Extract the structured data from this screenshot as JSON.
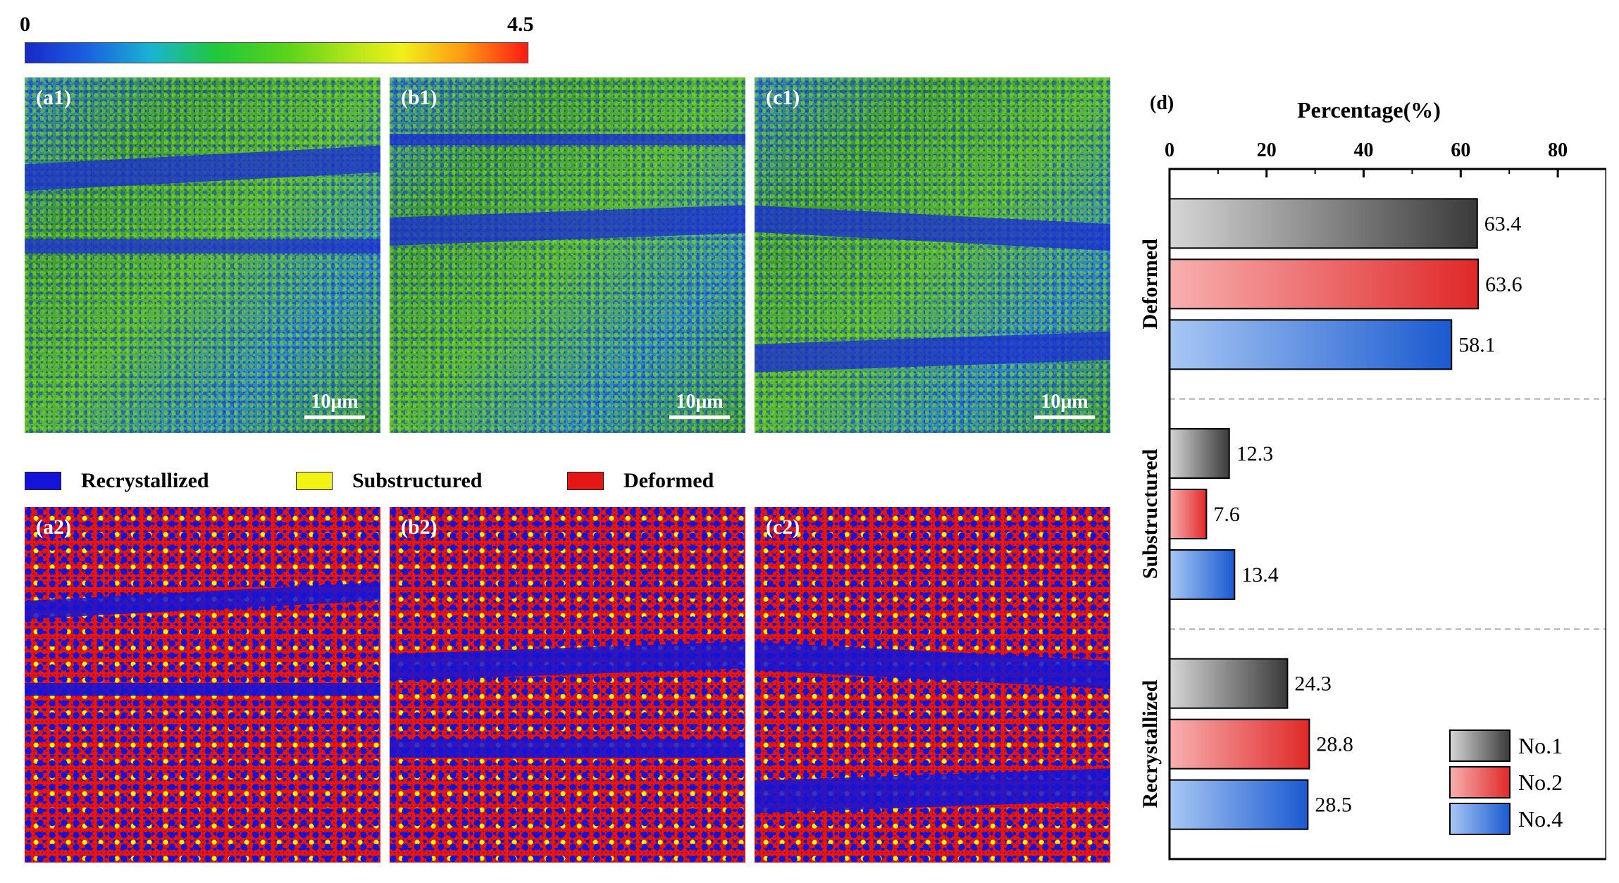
{
  "colorbar": {
    "min_label": "0",
    "max_label": "4.5",
    "colors": [
      "#1a28c8",
      "#19b4d2",
      "#20c83a",
      "#f0f01a",
      "#ff9a12",
      "#ff1a14"
    ]
  },
  "kam_panels": [
    {
      "label": "(a1)",
      "scale": "10μm"
    },
    {
      "label": "(b1)",
      "scale": "10μm"
    },
    {
      "label": "(c1)",
      "scale": "10μm"
    }
  ],
  "gos_panels": [
    {
      "label": "(a2)"
    },
    {
      "label": "(b2)"
    },
    {
      "label": "(c2)"
    }
  ],
  "map_legend": [
    {
      "label": "Recrystallized",
      "color": "#1414d8"
    },
    {
      "label": "Substructured",
      "color": "#f2f214"
    },
    {
      "label": "Deformed",
      "color": "#e41616"
    }
  ],
  "chart_data": {
    "type": "bar",
    "orientation": "horizontal",
    "panel_label": "(d)",
    "title": "",
    "xlabel": "Percentage(%)",
    "xlim": [
      0,
      90
    ],
    "xticks": [
      0,
      20,
      40,
      60,
      80
    ],
    "categories": [
      "Deformed",
      "Substructured",
      "Recrystallized"
    ],
    "series": [
      {
        "name": "No.1",
        "values": [
          63.4,
          12.3,
          24.3
        ],
        "color_light": "#d6d6d6",
        "color_dark": "#3a3a3a"
      },
      {
        "name": "No.2",
        "values": [
          63.6,
          7.6,
          28.8
        ],
        "color_light": "#f8b0b0",
        "color_dark": "#e02828"
      },
      {
        "name": "No.4",
        "values": [
          58.1,
          13.4,
          28.5
        ],
        "color_light": "#a8c8f4",
        "color_dark": "#1a5ad0"
      }
    ],
    "value_labels": [
      [
        "63.4",
        "12.3",
        "24.3"
      ],
      [
        "63.6",
        "7.6",
        "28.8"
      ],
      [
        "58.1",
        "13.4",
        "28.5"
      ]
    ],
    "legend_position": "bottom-right"
  }
}
